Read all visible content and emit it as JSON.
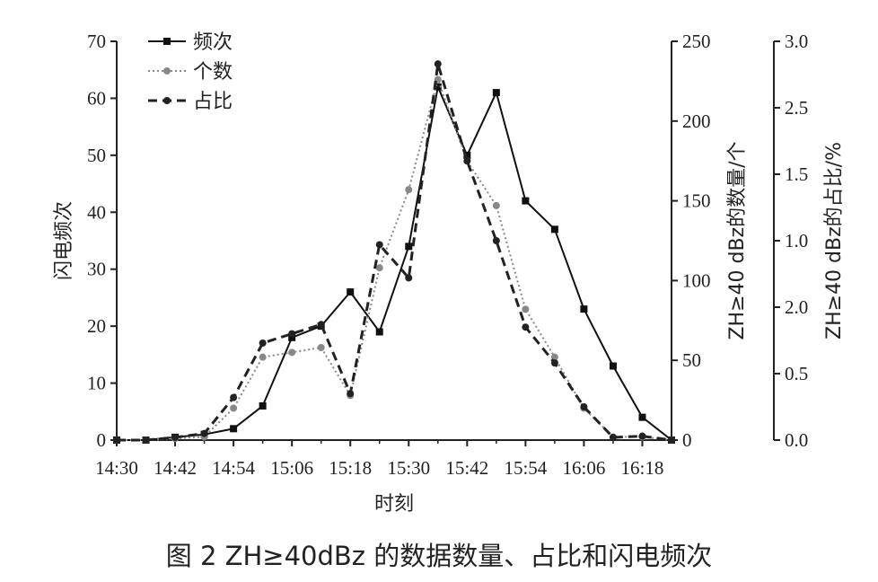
{
  "caption": "图 2 ZH≥40dBz 的数据数量、占比和闪电频次",
  "chart_data": {
    "type": "line",
    "xlabel": "时刻",
    "x_tick_labels": [
      "14:30",
      "14:42",
      "14:54",
      "15:06",
      "15:18",
      "15:30",
      "15:42",
      "15:54",
      "16:06",
      "16:18"
    ],
    "x": [
      "14:30",
      "14:36",
      "14:42",
      "14:48",
      "14:54",
      "15:00",
      "15:06",
      "15:12",
      "15:18",
      "15:24",
      "15:30",
      "15:36",
      "15:42",
      "15:48",
      "15:54",
      "16:00",
      "16:06",
      "16:12",
      "16:18",
      "16:24"
    ],
    "axes": {
      "left": {
        "label": "闪电频次",
        "ylim": [
          0,
          70
        ],
        "ticks": [
          "0",
          "10",
          "20",
          "30",
          "40",
          "50",
          "60",
          "70"
        ]
      },
      "right1": {
        "label": "ZH≥40 dBz的数量/个",
        "ylim": [
          0,
          250
        ],
        "ticks": [
          "0",
          "50",
          "100",
          "150",
          "200",
          "250"
        ]
      },
      "right2": {
        "label": "ZH≥40 dBz的占比/%",
        "ylim": [
          0,
          3
        ],
        "ticks": [
          "0.0",
          "0.5",
          "2.0",
          "1.0",
          "1.5",
          "2.5",
          "3.0"
        ]
      }
    },
    "legend": {
      "position": "top-left",
      "entries": [
        "频次",
        "个数",
        "占比"
      ]
    },
    "series": [
      {
        "name": "频次",
        "axis": "left",
        "color": "#111111",
        "style": "solid",
        "marker": "square",
        "values": [
          0,
          0,
          0.5,
          1,
          2,
          6,
          18,
          20,
          26,
          19,
          34,
          62,
          50,
          61,
          42,
          37,
          23,
          13,
          4,
          0
        ]
      },
      {
        "name": "个数",
        "axis": "right1",
        "color": "#888888",
        "style": "dotted",
        "marker": "circle",
        "values": [
          0,
          0,
          1,
          2,
          20,
          52,
          55,
          58,
          28,
          108,
          157,
          226,
          175,
          147,
          82,
          52,
          20,
          2,
          2,
          0
        ]
      },
      {
        "name": "占比",
        "axis": "right2",
        "color": "#222222",
        "style": "dashed",
        "marker": "circle",
        "values": [
          0,
          0,
          0.02,
          0.05,
          0.32,
          0.73,
          0.8,
          0.87,
          0.35,
          1.47,
          1.22,
          2.83,
          2.1,
          1.5,
          0.85,
          0.58,
          0.25,
          0.02,
          0.03,
          0
        ]
      }
    ]
  }
}
